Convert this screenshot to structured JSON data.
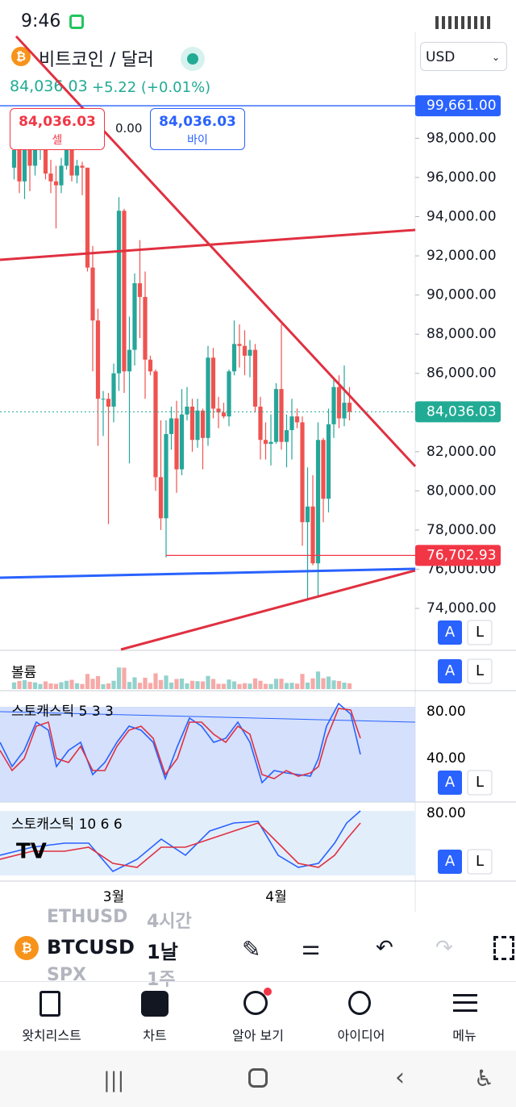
{
  "status_bar": {
    "time": "9:46"
  },
  "header": {
    "symbol_name": "비트코인 / 달러",
    "price": "84,036.03",
    "change": "+5.22 (+0.01%)",
    "currency": "USD",
    "sell_price": "84,036.03",
    "sell_label": "셀",
    "spread": "0.00",
    "buy_price": "84,036.03",
    "buy_label": "바이"
  },
  "chart_data": {
    "type": "candlestick",
    "categories": [
      null,
      null,
      null,
      null,
      null,
      null,
      null,
      null,
      null,
      null,
      null,
      null,
      null,
      null,
      null,
      null,
      null,
      null,
      null,
      "3월",
      null,
      null,
      null,
      null,
      null,
      null,
      null,
      null,
      null,
      null,
      null,
      null,
      null,
      null,
      null,
      null,
      null,
      null,
      null,
      null,
      null,
      null,
      null,
      null,
      null,
      null,
      null,
      null,
      null,
      null,
      "4월",
      null,
      null,
      null,
      null,
      null,
      null,
      null,
      null,
      null,
      null,
      null,
      null,
      null,
      null
    ],
    "open": [
      96500,
      97400,
      95800,
      97800,
      96600,
      97500,
      97600,
      96200,
      95800,
      95600,
      96600,
      98300,
      96100,
      96600,
      96500,
      91400,
      88700,
      84700,
      84700,
      84300,
      86000,
      94300,
      86100,
      87200,
      90600,
      89900,
      86700,
      86100,
      80700,
      78600,
      82900,
      83700,
      81100,
      83900,
      84300,
      82600,
      84100,
      82700,
      86800,
      84200,
      84000,
      83800,
      86100,
      87500,
      87400,
      86900,
      87200,
      84300,
      82600,
      82400,
      82500,
      85200,
      82500,
      83100,
      83800,
      83500,
      78400,
      79200,
      76300,
      82600,
      79600,
      83400,
      85300,
      83700,
      84500
    ],
    "high": [
      98100,
      97900,
      98500,
      98400,
      98000,
      98000,
      97700,
      96900,
      96600,
      97000,
      98800,
      99500,
      96900,
      96800,
      96500,
      92500,
      89300,
      85100,
      85000,
      86500,
      95000,
      94400,
      88900,
      91100,
      92800,
      91200,
      86900,
      86200,
      83600,
      83600,
      84300,
      84600,
      85200,
      85300,
      84700,
      84700,
      84200,
      87400,
      87300,
      84800,
      84500,
      86200,
      88700,
      88500,
      88200,
      87700,
      87500,
      84800,
      83500,
      83900,
      85500,
      88500,
      83900,
      84700,
      84200,
      83800,
      81200,
      80800,
      83500,
      82700,
      84200,
      85800,
      85900,
      86400,
      85300
    ],
    "low": [
      95900,
      95200,
      94900,
      95300,
      96100,
      96900,
      95900,
      95200,
      93400,
      95200,
      96400,
      95800,
      95700,
      95100,
      91200,
      86100,
      82300,
      82800,
      78300,
      83500,
      85100,
      85000,
      81400,
      86400,
      87800,
      84700,
      85900,
      80000,
      78000,
      76600,
      82100,
      79900,
      80800,
      83600,
      82000,
      82200,
      81100,
      82300,
      83700,
      83200,
      83700,
      83300,
      85900,
      86300,
      85900,
      85800,
      84000,
      81600,
      81600,
      81300,
      82400,
      82100,
      81200,
      81600,
      83200,
      77200,
      74500,
      76200,
      74600,
      78400,
      78900,
      82700,
      83200,
      83300,
      83600
    ],
    "close": [
      97400,
      95800,
      97800,
      96600,
      97500,
      97600,
      96200,
      95800,
      95600,
      96600,
      98300,
      96100,
      96600,
      96500,
      91400,
      88700,
      84700,
      84700,
      84300,
      86000,
      94300,
      86100,
      87200,
      90600,
      89900,
      86700,
      86100,
      80700,
      78600,
      82900,
      83700,
      81100,
      83900,
      84300,
      82600,
      84100,
      82700,
      86800,
      84200,
      84000,
      83800,
      86100,
      87500,
      87400,
      86900,
      87200,
      84300,
      82600,
      82400,
      82500,
      85200,
      82500,
      83100,
      83800,
      83500,
      78400,
      79200,
      76300,
      82600,
      79600,
      83400,
      85300,
      83700,
      84500,
      84036
    ],
    "up_color": "#26a69a",
    "down_color": "#ef5350",
    "ylim": [
      71900,
      100200
    ],
    "yticks": [
      {
        "value": 74000,
        "label": "74,000.00"
      },
      {
        "value": 76000,
        "label": "76,000.00"
      },
      {
        "value": 78000,
        "label": "78,000.00"
      },
      {
        "value": 80000,
        "label": "80,000.00"
      },
      {
        "value": 82000,
        "label": "82,000.00"
      },
      {
        "value": 84000,
        "label": "84,000.00"
      },
      {
        "value": 86000,
        "label": "86,000.00"
      },
      {
        "value": 88000,
        "label": "88,000.00"
      },
      {
        "value": 90000,
        "label": "90,000.00"
      },
      {
        "value": 92000,
        "label": "92,000.00"
      },
      {
        "value": 94000,
        "label": "94,000.00"
      },
      {
        "value": 96000,
        "label": "96,000.00"
      },
      {
        "value": 98000,
        "label": "98,000.00"
      }
    ],
    "price_lines": [
      {
        "value": 99661,
        "label": "99,661.00",
        "color": "#2962ff"
      },
      {
        "value": 84036.03,
        "label": "84,036.03",
        "color": "#22ab94"
      },
      {
        "value": 76702.93,
        "label": "76,702.93",
        "color": "#f23645"
      }
    ],
    "panels": {
      "volume": "볼륨",
      "stoch1": "스토캐스틱 5 3 3",
      "stoch1_ticks": [
        "80.00",
        "40.00"
      ],
      "stoch2": "스토캐스틱 10 6 6",
      "stoch2_ticks": [
        "80.00"
      ]
    },
    "buttons": [
      "A",
      "L"
    ]
  },
  "toolbar": {
    "symbols": [
      {
        "symbol": "ETHUSD",
        "interval": "4시간"
      },
      {
        "symbol": "BTCUSD",
        "interval": "1날"
      },
      {
        "symbol": "SPX",
        "interval": "1주"
      }
    ]
  },
  "nav": [
    "왓치리스트",
    "차트",
    "알아 보기",
    "아이디어",
    "메뉴"
  ]
}
